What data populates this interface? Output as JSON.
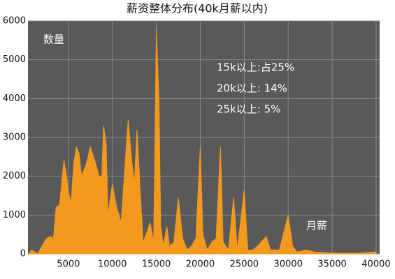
{
  "chart_data": {
    "type": "area",
    "title": "薪资整体分布(40k月薪以内)",
    "y_label": "数量",
    "x_label": "月薪",
    "annotations": [
      "15k以上:占25%",
      "20k以上: 14%",
      "25k以上: 5%"
    ],
    "color": "#f39a1e",
    "background": "#595959",
    "grid": true,
    "xlim": [
      400,
      40400
    ],
    "ylim": [
      0,
      6000
    ],
    "xticks": [
      5000,
      10000,
      15000,
      20000,
      25000,
      30000,
      35000,
      40000
    ],
    "yticks": [
      0,
      1000,
      2000,
      3000,
      4000,
      5000,
      6000
    ],
    "x": [
      500,
      800,
      1200,
      1500,
      2000,
      2500,
      3000,
      3300,
      3600,
      4000,
      4300,
      4500,
      4800,
      5000,
      5300,
      5600,
      5900,
      6200,
      6500,
      7000,
      7500,
      8000,
      8500,
      8800,
      9000,
      9300,
      9500,
      10000,
      10500,
      11000,
      11500,
      11800,
      12200,
      12500,
      12800,
      13200,
      13500,
      14000,
      14300,
      14700,
      15000,
      15300,
      15500,
      15800,
      16200,
      16500,
      17000,
      17500,
      18000,
      18500,
      19000,
      19500,
      20000,
      20300,
      20800,
      21300,
      21800,
      22300,
      22600,
      23200,
      23800,
      24200,
      25000,
      25400,
      26000,
      26500,
      27500,
      28000,
      29000,
      30000,
      30500,
      31000,
      32000,
      33000,
      35000,
      38000,
      40000
    ],
    "values": [
      0,
      100,
      50,
      0,
      200,
      400,
      450,
      400,
      1200,
      1250,
      2000,
      2400,
      2000,
      1600,
      1300,
      2300,
      2750,
      2600,
      2000,
      2300,
      2750,
      2400,
      2000,
      2000,
      3300,
      2800,
      1000,
      1800,
      1200,
      800,
      2500,
      3450,
      2400,
      1800,
      3200,
      1500,
      300,
      600,
      800,
      300,
      5800,
      4000,
      700,
      200,
      700,
      200,
      300,
      1450,
      400,
      100,
      200,
      400,
      2750,
      500,
      100,
      300,
      400,
      2750,
      300,
      100,
      1450,
      100,
      1650,
      100,
      100,
      200,
      450,
      100,
      100,
      1000,
      200,
      50,
      100,
      50,
      20,
      20,
      50
    ]
  }
}
